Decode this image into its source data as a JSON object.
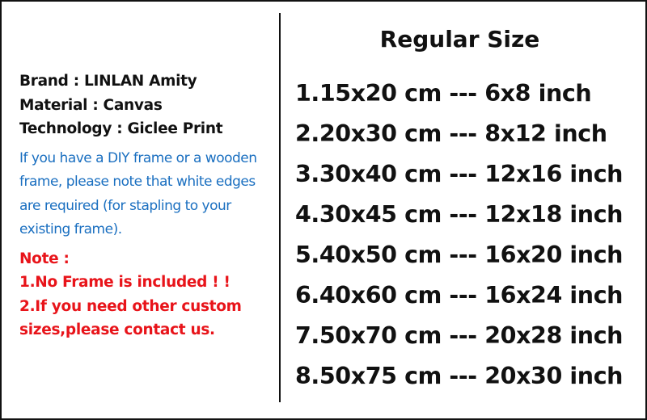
{
  "specs": {
    "brand": "Brand : LINLAN Amity",
    "material": "Material : Canvas",
    "technology": "Technology : Giclee Print"
  },
  "info_lines": [
    "If you have a DIY frame or a wooden",
    "frame, please note that white edges",
    "are required (for stapling to your",
    "existing frame)."
  ],
  "note": {
    "heading": "Note :",
    "lines": [
      "1.No Frame is included ! !",
      "2.If you need other custom",
      "sizes,please contact us."
    ]
  },
  "sizes_title": "Regular Size",
  "sizes": [
    "1.15x20 cm --- 6x8 inch",
    "2.20x30 cm --- 8x12 inch",
    "3.30x40 cm --- 12x16 inch",
    "4.30x45 cm --- 12x18 inch",
    "5.40x50 cm --- 16x20 inch",
    "6.40x60 cm --- 16x24 inch",
    "7.50x70 cm --- 20x28 inch",
    "8.50x75 cm --- 20x30 inch"
  ],
  "colors": {
    "info": "#1a6fc0",
    "note": "#e8141a",
    "text": "#111111"
  }
}
